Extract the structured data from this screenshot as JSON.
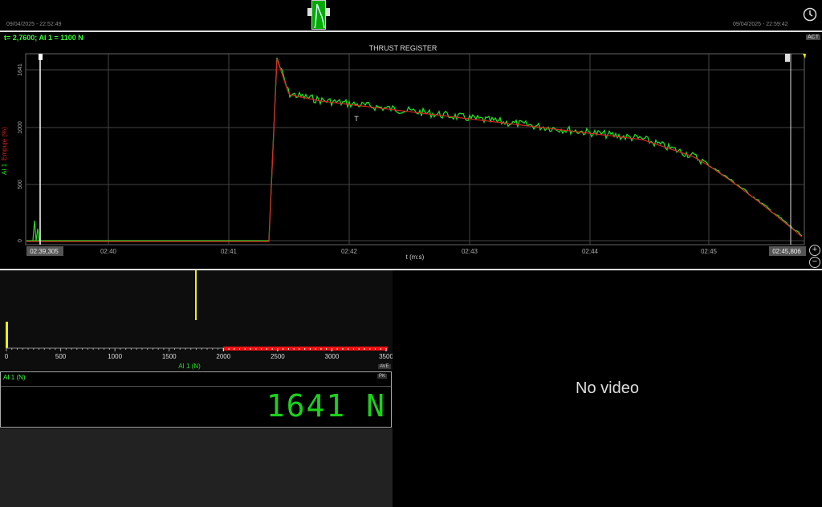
{
  "overview": {
    "start_time": "09/04/2025 - 22:52:49",
    "end_time": "09/04/2025 - 22:59:42"
  },
  "graph": {
    "cursor_readout": "t= 2,7600; AI 1 = 1100 N",
    "act_label": "ACT",
    "title": "THRUST REGISTER",
    "y_label_green": "AI 1",
    "y_label_red": "Empuje (%)",
    "x_label": "t (m:s)",
    "y_ticks": [
      "0",
      "500",
      "1000",
      "1641"
    ],
    "x_ticks": [
      "02:39,305",
      "02:40",
      "02:41",
      "02:42",
      "02:43",
      "02:44",
      "02:45",
      "02:45,806"
    ],
    "zoom_in": "+",
    "zoom_out": "−",
    "colors": {
      "raw": "#22dd22",
      "filtered": "#dd2222",
      "grid": "#444444"
    }
  },
  "histogram": {
    "x_label": "AI 1 (N)",
    "ticks": [
      "0",
      "500",
      "1000",
      "1500",
      "2000",
      "2500",
      "3000",
      "3500"
    ],
    "ave_label": "AVE"
  },
  "value_display": {
    "title": "AI 1 (N)",
    "sub_label": "PK",
    "value": "1641 N"
  },
  "video": {
    "message": "No video"
  }
}
